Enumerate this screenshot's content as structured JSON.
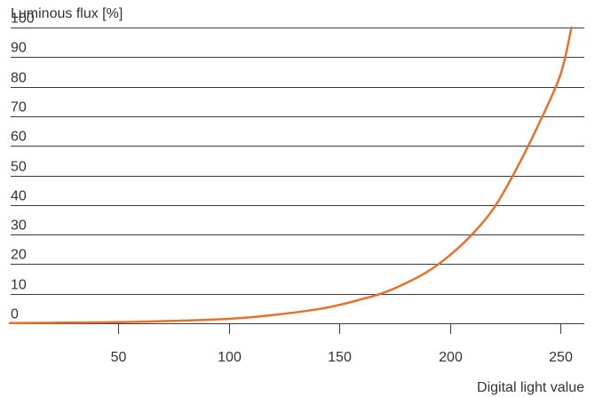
{
  "chart_data": {
    "type": "line",
    "title": "",
    "ylabel": "Luminous flux [%]",
    "xlabel": "Digital light value",
    "xlim": [
      1,
      255
    ],
    "ylim": [
      0,
      100
    ],
    "x_ticks": [
      50,
      100,
      150,
      200,
      250
    ],
    "y_ticks": [
      0,
      10,
      20,
      30,
      40,
      50,
      60,
      70,
      80,
      90,
      100
    ],
    "grid": "horizontal",
    "series": [
      {
        "color": "#e8702a",
        "x": [
          1,
          25,
          50,
          75,
          100,
          120,
          140,
          150,
          160,
          170,
          180,
          190,
          200,
          210,
          220,
          230,
          240,
          250,
          255
        ],
        "y": [
          0.1,
          0.2,
          0.4,
          0.8,
          1.5,
          2.8,
          4.7,
          6.2,
          8.1,
          10.3,
          13.5,
          17.5,
          23,
          30,
          39,
          52,
          67,
          84,
          100
        ]
      }
    ]
  }
}
